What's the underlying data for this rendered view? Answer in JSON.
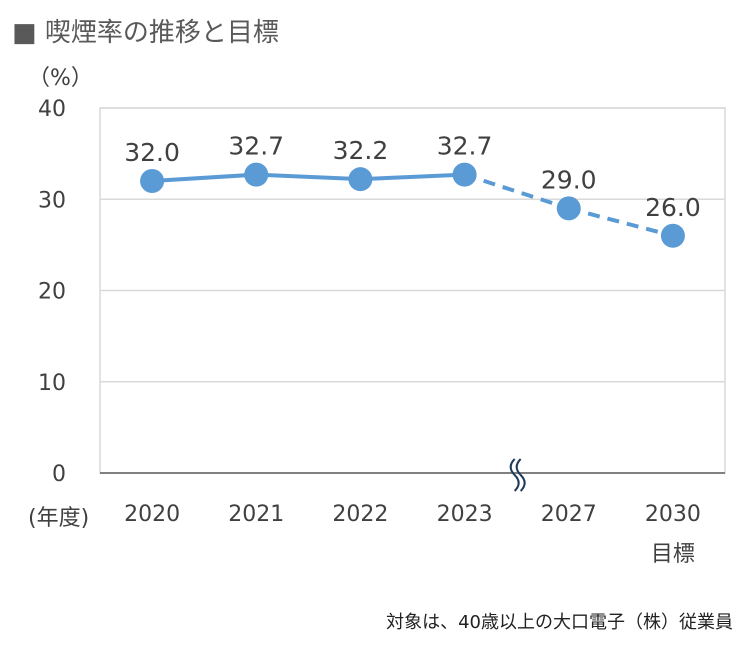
{
  "chart_data": {
    "type": "line",
    "title": "■ 喫煙率の推移と目標",
    "ylabel": "（%）",
    "xlabel": "(年度)",
    "ylim": [
      0,
      40
    ],
    "yticks": [
      0,
      10,
      20,
      30,
      40
    ],
    "grid": true,
    "categories": [
      "2020",
      "2021",
      "2022",
      "2023",
      "2027",
      "2030"
    ],
    "category_sublabels": [
      "",
      "",
      "",
      "",
      "",
      "目標"
    ],
    "values": [
      32.0,
      32.7,
      32.2,
      32.7,
      29.0,
      26.0
    ],
    "data_labels": [
      "32.0",
      "32.7",
      "32.2",
      "32.7",
      "29.0",
      "26.0"
    ],
    "actual_range": [
      "2020",
      "2023"
    ],
    "target_range_dashed": [
      "2023",
      "2030"
    ],
    "axis_break": "between 2023 and 2027",
    "series_color": "#5B9BD5",
    "note": "対象は、40歳以上の大口電子（株）従業員"
  }
}
